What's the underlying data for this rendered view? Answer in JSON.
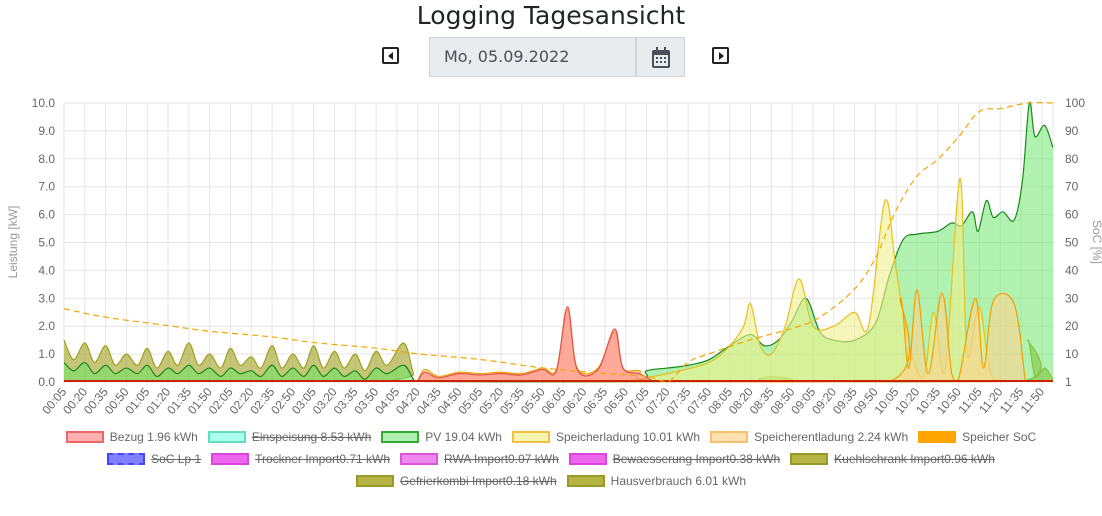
{
  "header": {
    "title": "Logging Tagesansicht",
    "date": "Mo, 05.09.2022"
  },
  "icons": {
    "prev": "caret-left-square-icon",
    "next": "caret-right-square-icon",
    "calendar": "calendar-icon"
  },
  "chart_data": {
    "type": "line",
    "ylabel": "Leistung [kW]",
    "y2label": "SoC [%]",
    "ylim": [
      0,
      10
    ],
    "y2lim": [
      1,
      100
    ],
    "yticks": [
      "0.0",
      "1.0",
      "2.0",
      "3.0",
      "4.0",
      "5.0",
      "6.0",
      "7.0",
      "8.0",
      "9.0",
      "10.0"
    ],
    "y2ticks": [
      "1",
      "10",
      "20",
      "30",
      "40",
      "50",
      "60",
      "70",
      "80",
      "90",
      "100"
    ],
    "xticks": [
      "00:05",
      "00:20",
      "00:35",
      "00:50",
      "01:05",
      "01:20",
      "01:35",
      "01:50",
      "02:05",
      "02:20",
      "02:35",
      "02:50",
      "03:05",
      "03:20",
      "03:35",
      "03:50",
      "04:05",
      "04:20",
      "04:35",
      "04:50",
      "05:05",
      "05:20",
      "05:35",
      "05:50",
      "06:05",
      "06:20",
      "06:35",
      "06:50",
      "07:05",
      "07:20",
      "07:35",
      "07:50",
      "08:05",
      "08:20",
      "08:35",
      "08:50",
      "09:05",
      "09:20",
      "09:35",
      "09:50",
      "10:05",
      "10:20",
      "10:35",
      "10:50",
      "11:05",
      "11:20",
      "11:35",
      "11:50"
    ],
    "series": [
      {
        "name": "Hausverbrauch",
        "color": "#a0a020",
        "fill": "rgba(160,160,32,0.6)",
        "points": [
          [
            "00:05",
            1.5
          ],
          [
            "00:12",
            0.8
          ],
          [
            "00:20",
            1.4
          ],
          [
            "00:27",
            0.7
          ],
          [
            "00:35",
            1.3
          ],
          [
            "00:42",
            0.6
          ],
          [
            "00:50",
            1.0
          ],
          [
            "00:58",
            0.6
          ],
          [
            "01:05",
            1.2
          ],
          [
            "01:12",
            0.5
          ],
          [
            "01:20",
            1.1
          ],
          [
            "01:27",
            0.6
          ],
          [
            "01:35",
            1.4
          ],
          [
            "01:42",
            0.6
          ],
          [
            "01:50",
            1.0
          ],
          [
            "01:58",
            0.5
          ],
          [
            "02:05",
            1.2
          ],
          [
            "02:12",
            0.6
          ],
          [
            "02:20",
            0.9
          ],
          [
            "02:27",
            0.5
          ],
          [
            "02:35",
            1.3
          ],
          [
            "02:42",
            0.5
          ],
          [
            "02:50",
            1.0
          ],
          [
            "02:58",
            0.5
          ],
          [
            "03:05",
            1.3
          ],
          [
            "03:12",
            0.5
          ],
          [
            "03:20",
            1.1
          ],
          [
            "03:27",
            0.5
          ],
          [
            "03:35",
            1.0
          ],
          [
            "03:42",
            0.4
          ],
          [
            "03:50",
            1.1
          ],
          [
            "03:58",
            0.6
          ],
          [
            "04:10",
            1.4
          ],
          [
            "04:17",
            0.3
          ],
          [
            "04:22",
            0.02
          ],
          [
            "08:30",
            0.02
          ],
          [
            "08:35",
            0.2
          ],
          [
            "08:40",
            0.02
          ],
          [
            "11:35",
            0.02
          ],
          [
            "11:40",
            1.5
          ],
          [
            "11:45",
            0.2
          ],
          [
            "11:52",
            0.5
          ],
          [
            "11:58",
            0.1
          ]
        ]
      },
      {
        "name": "PV",
        "color": "#1a8a1a",
        "fill": "rgba(100,230,100,0.5)",
        "points": [
          [
            "00:05",
            0.7
          ],
          [
            "00:12",
            0.4
          ],
          [
            "00:20",
            0.7
          ],
          [
            "00:27",
            0.3
          ],
          [
            "00:35",
            0.6
          ],
          [
            "00:42",
            0.3
          ],
          [
            "00:50",
            0.5
          ],
          [
            "00:58",
            0.3
          ],
          [
            "01:05",
            0.6
          ],
          [
            "01:12",
            0.2
          ],
          [
            "01:20",
            0.5
          ],
          [
            "01:27",
            0.3
          ],
          [
            "01:35",
            0.6
          ],
          [
            "01:42",
            0.3
          ],
          [
            "01:50",
            0.5
          ],
          [
            "01:58",
            0.2
          ],
          [
            "02:05",
            0.5
          ],
          [
            "02:12",
            0.3
          ],
          [
            "02:20",
            0.4
          ],
          [
            "02:27",
            0.2
          ],
          [
            "02:35",
            0.6
          ],
          [
            "02:42",
            0.2
          ],
          [
            "02:50",
            0.5
          ],
          [
            "02:58",
            0.2
          ],
          [
            "03:05",
            0.6
          ],
          [
            "03:12",
            0.2
          ],
          [
            "03:20",
            0.5
          ],
          [
            "03:27",
            0.2
          ],
          [
            "03:35",
            0.4
          ],
          [
            "03:42",
            0.1
          ],
          [
            "03:50",
            0.5
          ],
          [
            "03:58",
            0.3
          ],
          [
            "04:10",
            0.6
          ],
          [
            "04:17",
            0.1
          ],
          [
            "04:22",
            0.02
          ],
          [
            "06:50",
            0.02
          ],
          [
            "07:05",
            0.4
          ],
          [
            "07:20",
            0.5
          ],
          [
            "07:35",
            0.6
          ],
          [
            "07:50",
            0.8
          ],
          [
            "08:05",
            1.3
          ],
          [
            "08:20",
            1.7
          ],
          [
            "08:30",
            1.3
          ],
          [
            "08:40",
            1.5
          ],
          [
            "08:50",
            2.2
          ],
          [
            "09:00",
            3.0
          ],
          [
            "09:10",
            1.8
          ],
          [
            "09:20",
            1.5
          ],
          [
            "09:35",
            1.5
          ],
          [
            "09:50",
            2.1
          ],
          [
            "10:00",
            3.8
          ],
          [
            "10:10",
            5.1
          ],
          [
            "10:20",
            5.3
          ],
          [
            "10:35",
            5.4
          ],
          [
            "10:45",
            5.7
          ],
          [
            "10:52",
            5.6
          ],
          [
            "11:00",
            6.1
          ],
          [
            "11:04",
            5.4
          ],
          [
            "11:10",
            6.5
          ],
          [
            "11:15",
            5.9
          ],
          [
            "11:22",
            6.1
          ],
          [
            "11:30",
            5.8
          ],
          [
            "11:36",
            7.2
          ],
          [
            "11:41",
            10.0
          ],
          [
            "11:45",
            8.8
          ],
          [
            "11:52",
            9.2
          ],
          [
            "11:58",
            8.4
          ]
        ]
      },
      {
        "name": "Speicherladung",
        "color": "#e8c020",
        "fill": "rgba(240,240,140,0.6)",
        "points": [
          [
            "06:50",
            0.02
          ],
          [
            "07:20",
            0.3
          ],
          [
            "07:50",
            0.7
          ],
          [
            "08:05",
            1.3
          ],
          [
            "08:15",
            2.0
          ],
          [
            "08:20",
            2.8
          ],
          [
            "08:27",
            1.3
          ],
          [
            "08:35",
            1.0
          ],
          [
            "08:45",
            2.0
          ],
          [
            "08:55",
            3.7
          ],
          [
            "09:05",
            2.0
          ],
          [
            "09:20",
            2.0
          ],
          [
            "09:35",
            2.5
          ],
          [
            "09:45",
            2.0
          ],
          [
            "09:57",
            6.5
          ],
          [
            "10:05",
            4.0
          ],
          [
            "10:15",
            1.2
          ],
          [
            "10:25",
            0.2
          ],
          [
            "10:32",
            2.5
          ],
          [
            "10:40",
            0.3
          ],
          [
            "10:51",
            7.3
          ],
          [
            "10:56",
            1.0
          ],
          [
            "11:05",
            2.7
          ],
          [
            "11:15",
            0.1
          ],
          [
            "11:38",
            0.05
          ],
          [
            "11:58",
            0.02
          ]
        ]
      },
      {
        "name": "Speicherentladung",
        "color": "#f0a000",
        "fill": "rgba(255,210,140,0.6)",
        "points": [
          [
            "04:20",
            0.02
          ],
          [
            "04:25",
            0.45
          ],
          [
            "04:35",
            0.2
          ],
          [
            "04:50",
            0.35
          ],
          [
            "05:05",
            0.3
          ],
          [
            "05:20",
            0.35
          ],
          [
            "05:35",
            0.3
          ],
          [
            "05:50",
            0.5
          ],
          [
            "06:00",
            0.45
          ],
          [
            "06:08",
            2.6
          ],
          [
            "06:15",
            0.5
          ],
          [
            "06:30",
            0.5
          ],
          [
            "06:42",
            1.8
          ],
          [
            "06:48",
            0.5
          ],
          [
            "07:00",
            0.4
          ],
          [
            "07:15",
            0.02
          ],
          [
            "10:00",
            0.02
          ],
          [
            "10:08",
            3.0
          ],
          [
            "10:14",
            0.5
          ],
          [
            "10:20",
            3.3
          ],
          [
            "10:28",
            0.3
          ],
          [
            "10:38",
            3.2
          ],
          [
            "10:45",
            0.3
          ],
          [
            "10:50",
            0.1
          ],
          [
            "11:02",
            3.0
          ],
          [
            "11:08",
            0.5
          ],
          [
            "11:15",
            2.9
          ],
          [
            "11:30",
            2.8
          ],
          [
            "11:38",
            0.05
          ]
        ]
      },
      {
        "name": "Bezug",
        "color": "#e05050",
        "fill": "rgba(255,130,130,0.6)",
        "points": [
          [
            "04:20",
            0.02
          ],
          [
            "04:25",
            0.35
          ],
          [
            "04:35",
            0.15
          ],
          [
            "04:50",
            0.3
          ],
          [
            "05:05",
            0.25
          ],
          [
            "05:20",
            0.3
          ],
          [
            "05:35",
            0.25
          ],
          [
            "05:50",
            0.45
          ],
          [
            "06:00",
            0.4
          ],
          [
            "06:08",
            2.7
          ],
          [
            "06:15",
            0.45
          ],
          [
            "06:30",
            0.45
          ],
          [
            "06:42",
            1.9
          ],
          [
            "06:48",
            0.5
          ],
          [
            "07:00",
            0.3
          ],
          [
            "07:10",
            0.02
          ]
        ]
      }
    ],
    "soc": {
      "name": "Speicher SoC",
      "color": "#f5a500",
      "points": [
        [
          "00:05",
          27
        ],
        [
          "00:35",
          24
        ],
        [
          "01:20",
          21
        ],
        [
          "01:50",
          19
        ],
        [
          "02:35",
          17
        ],
        [
          "03:05",
          15
        ],
        [
          "03:50",
          13
        ],
        [
          "04:20",
          11
        ],
        [
          "05:05",
          9
        ],
        [
          "05:50",
          6
        ],
        [
          "06:35",
          4
        ],
        [
          "07:05",
          3
        ],
        [
          "07:20",
          1
        ],
        [
          "07:35",
          8
        ],
        [
          "07:50",
          11
        ],
        [
          "08:20",
          16
        ],
        [
          "08:50",
          20
        ],
        [
          "09:10",
          24
        ],
        [
          "09:35",
          34
        ],
        [
          "09:50",
          45
        ],
        [
          "10:05",
          62
        ],
        [
          "10:20",
          74
        ],
        [
          "10:35",
          80
        ],
        [
          "10:50",
          88
        ],
        [
          "11:05",
          97
        ],
        [
          "11:20",
          98
        ],
        [
          "11:40",
          100
        ],
        [
          "11:58",
          100
        ]
      ]
    }
  },
  "legend": {
    "rows": [
      [
        {
          "label": "Bezug 1.96 kWh",
          "fill": "#ffb0b0",
          "border": "#ee6666",
          "hidden": false
        },
        {
          "label": "Einspeisung 8.53 kWh",
          "fill": "#aaffee",
          "border": "#66ddbb",
          "hidden": true
        },
        {
          "label": "PV 19.04 kWh",
          "fill": "#b0f0b0",
          "border": "#33aa33",
          "hidden": false
        },
        {
          "label": "Speicherladung 10.01 kWh",
          "fill": "#f5f5b0",
          "border": "#f0c040",
          "hidden": false
        },
        {
          "label": "Speicherentladung 2.24 kWh",
          "fill": "#ffe0b0",
          "border": "#f5c070",
          "hidden": false
        },
        {
          "label": "Speicher SoC",
          "fill": "#ffa500",
          "border": "#ffa500",
          "hidden": false,
          "dashed": true
        }
      ],
      [
        {
          "label": "SoC Lp 1",
          "fill": "#8080ff",
          "border": "#4444ff",
          "hidden": true,
          "dashed": true
        },
        {
          "label": "Trockner Import0.71 kWh",
          "fill": "#ee66ee",
          "border": "#dd44dd",
          "hidden": true
        },
        {
          "label": "RWA Import0.07 kWh",
          "fill": "#ee88ee",
          "border": "#dd55dd",
          "hidden": true
        },
        {
          "label": "Bewaesserung Import0.38 kWh",
          "fill": "#ee66ee",
          "border": "#dd44dd",
          "hidden": true
        },
        {
          "label": "Kuehlschrank Import0.96 kWh",
          "fill": "#b5b545",
          "border": "#99992a",
          "hidden": true
        }
      ],
      [
        {
          "label": "Gefrierkombi Import0.18 kWh",
          "fill": "#b5b545",
          "border": "#99992a",
          "hidden": true
        },
        {
          "label": "Hausverbrauch 6.01 kWh",
          "fill": "#b5b545",
          "border": "#99992a",
          "hidden": false
        }
      ]
    ]
  }
}
